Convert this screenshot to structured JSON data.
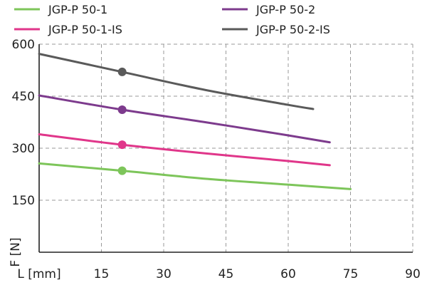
{
  "chart_data": {
    "type": "line",
    "title": "",
    "xlabel": "L [mm]",
    "ylabel": "F [N]",
    "xlim": [
      0,
      90
    ],
    "ylim": [
      0,
      600
    ],
    "xticks": [
      15,
      30,
      45,
      60,
      75,
      90
    ],
    "yticks": [
      150,
      300,
      450,
      600
    ],
    "grid": true,
    "legend_position": "top",
    "series": [
      {
        "name": "JGP-P 50-1",
        "color": "#7dc55a",
        "x": [
          0,
          20,
          40,
          60,
          75
        ],
        "y": [
          256,
          235,
          212,
          195,
          182
        ],
        "marker": {
          "x": 20,
          "y": 235
        }
      },
      {
        "name": "JGP-P 50-2",
        "color": "#7d3b8d",
        "x": [
          0,
          20,
          40,
          60,
          70
        ],
        "y": [
          452,
          411,
          375,
          337,
          317
        ],
        "marker": {
          "x": 20,
          "y": 411
        }
      },
      {
        "name": "JGP-P 50-1-IS",
        "color": "#e0368a",
        "x": [
          0,
          20,
          40,
          60,
          70
        ],
        "y": [
          340,
          310,
          285,
          263,
          251
        ],
        "marker": {
          "x": 20,
          "y": 310
        }
      },
      {
        "name": "JGP-P 50-2-IS",
        "color": "#5a5a5a",
        "x": [
          0,
          20,
          40,
          60,
          66
        ],
        "y": [
          572,
          520,
          468,
          425,
          413
        ],
        "marker": {
          "x": 20,
          "y": 520
        }
      }
    ]
  }
}
